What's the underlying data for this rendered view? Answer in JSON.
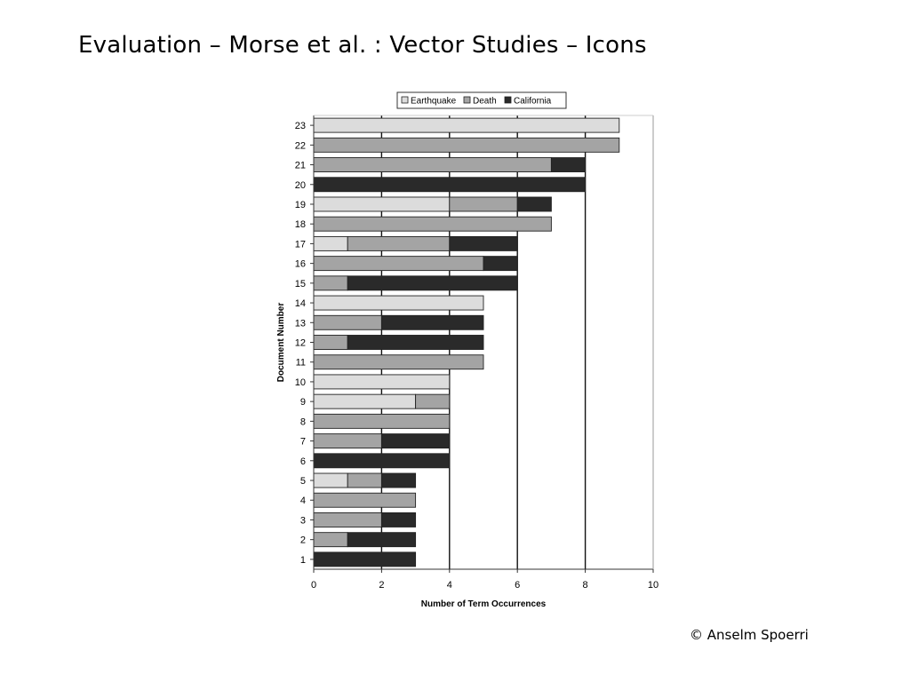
{
  "slide": {
    "title": "Evaluation – Morse et al. : Vector Studies – Icons",
    "copyright": "© Anselm Spoerri"
  },
  "chart_data": {
    "type": "bar",
    "orientation": "horizontal",
    "stacked": true,
    "title": "",
    "xlabel": "Number of Term Occurrences",
    "ylabel": "Document Number",
    "xlim": [
      0,
      10
    ],
    "xticks": [
      0,
      2,
      4,
      6,
      8,
      10
    ],
    "vertical_gridlines_at": [
      2,
      4,
      6,
      8
    ],
    "legend_position": "top",
    "categories": [
      "1",
      "2",
      "3",
      "4",
      "5",
      "6",
      "7",
      "8",
      "9",
      "10",
      "11",
      "12",
      "13",
      "14",
      "15",
      "16",
      "17",
      "18",
      "19",
      "20",
      "21",
      "22",
      "23"
    ],
    "series": [
      {
        "name": "Earthquake",
        "color": "#dcdcdc",
        "values": [
          0,
          0,
          0,
          0,
          1,
          0,
          0,
          0,
          3,
          4,
          0,
          0,
          0,
          5,
          0,
          0,
          1,
          0,
          4,
          0,
          0,
          0,
          9
        ]
      },
      {
        "name": "Death",
        "color": "#a4a4a4",
        "values": [
          0,
          1,
          2,
          3,
          1,
          0,
          2,
          4,
          1,
          0,
          5,
          1,
          2,
          0,
          1,
          5,
          3,
          7,
          2,
          0,
          7,
          9,
          0
        ]
      },
      {
        "name": "California",
        "color": "#2a2a2a",
        "values": [
          3,
          2,
          1,
          0,
          1,
          4,
          2,
          0,
          0,
          0,
          0,
          4,
          3,
          0,
          5,
          1,
          2,
          0,
          1,
          8,
          1,
          0,
          0
        ]
      }
    ]
  }
}
